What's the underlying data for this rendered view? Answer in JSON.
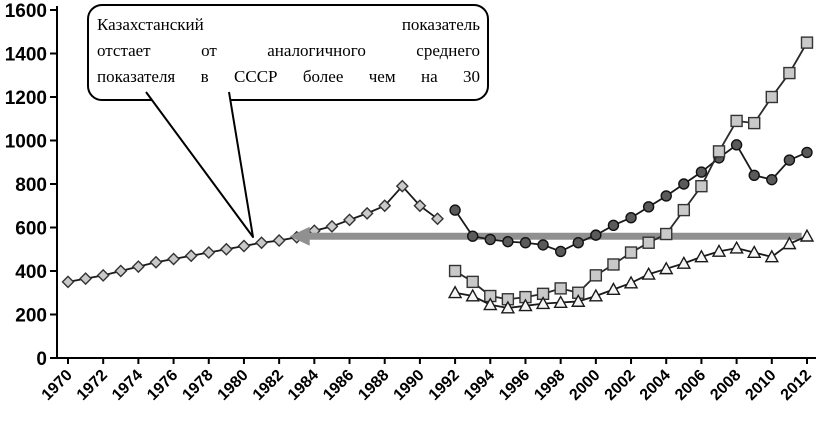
{
  "chart_data": {
    "type": "line",
    "title": "",
    "xlabel": "",
    "ylabel": "",
    "ylim": [
      0,
      1600
    ],
    "grid": false,
    "legend": "none",
    "y_ticks": [
      0,
      200,
      400,
      600,
      800,
      1000,
      1200,
      1400,
      1600
    ],
    "x_ticks": [
      1970,
      1972,
      1974,
      1976,
      1978,
      1980,
      1982,
      1984,
      1986,
      1988,
      1990,
      1992,
      1994,
      1996,
      1998,
      2000,
      2002,
      2004,
      2006,
      2008,
      2010,
      2012
    ],
    "series": [
      {
        "name": "diamonds",
        "marker": "diamond",
        "start_year": 1970,
        "line_color": "#1a1a1a",
        "fill": "#c9c9c9",
        "edge": "#333333",
        "values": [
          350,
          365,
          380,
          400,
          420,
          440,
          455,
          470,
          485,
          500,
          515,
          530,
          540,
          555,
          585,
          605,
          635,
          665,
          700,
          790,
          700,
          640
        ]
      },
      {
        "name": "circles",
        "marker": "circle",
        "start_year": 1992,
        "line_color": "#1a1a1a",
        "fill": "#5a5a5a",
        "edge": "#111111",
        "values": [
          680,
          560,
          545,
          535,
          530,
          520,
          490,
          530,
          565,
          610,
          645,
          695,
          745,
          800,
          855,
          920,
          980,
          840,
          820,
          910,
          945
        ]
      },
      {
        "name": "squares",
        "marker": "square",
        "start_year": 1992,
        "line_color": "#2a2a2a",
        "fill": "#c9c9c9",
        "edge": "#333333",
        "values": [
          400,
          350,
          285,
          270,
          280,
          295,
          320,
          300,
          380,
          430,
          485,
          530,
          570,
          680,
          790,
          950,
          1090,
          1080,
          1200,
          1310,
          1450
        ]
      },
      {
        "name": "triangles",
        "marker": "triangle",
        "start_year": 1992,
        "line_color": "#1a1a1a",
        "fill": "#f5f5f5",
        "edge": "#1a1a1a",
        "values": [
          300,
          285,
          245,
          230,
          240,
          250,
          255,
          260,
          285,
          315,
          345,
          385,
          410,
          435,
          465,
          490,
          505,
          485,
          465,
          525,
          560
        ]
      }
    ],
    "annotation": {
      "callout_text": "Казахстанский показатель отстает от аналогичного среднего показателя в СССР более чем на 30",
      "callout_lines": [
        "Казахстанский показатель",
        "отстает от аналогичного среднего",
        "показателя в СССР более чем на 30"
      ],
      "arrow": {
        "value": 560,
        "from_year": 2011.7,
        "to_year": 1982.6,
        "color": "#909090"
      }
    }
  }
}
